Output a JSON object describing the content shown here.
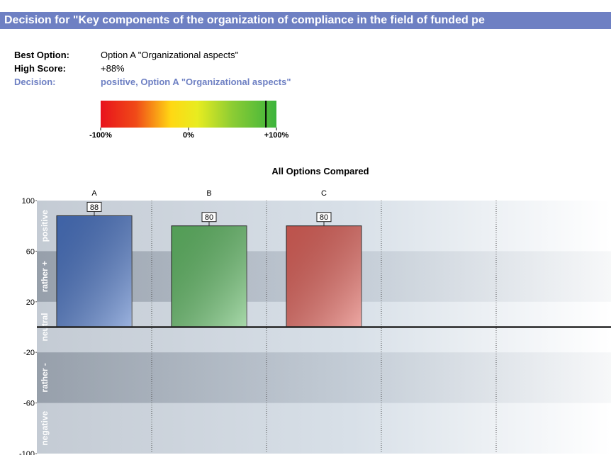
{
  "header": {
    "title": "Decision for  \"Key components of the organization of compliance in the field of funded pe"
  },
  "info": {
    "rows": [
      {
        "label": "Best Option:",
        "value": "Option A \"Organizational aspects\""
      },
      {
        "label": "High Score:",
        "value": "+88%"
      },
      {
        "label": "Decision:",
        "value": "positive, Option A \"Organizational aspects\""
      }
    ]
  },
  "scale": {
    "lim": [
      -100,
      100
    ],
    "marker": 88,
    "ticks": [
      {
        "value": -100,
        "label": "-100%"
      },
      {
        "value": 0,
        "label": "0%"
      },
      {
        "value": 100,
        "label": "+100%"
      }
    ]
  },
  "chart_data": {
    "type": "bar",
    "title": "All Options Compared",
    "categories": [
      "A",
      "B",
      "C",
      null,
      null
    ],
    "values": [
      88,
      80,
      80,
      null,
      null
    ],
    "colors": [
      "#4a74c4",
      "#62bb66",
      "#e0625a",
      null,
      null
    ],
    "ylim": [
      -100,
      100
    ],
    "yticks": [
      100,
      60,
      20,
      -20,
      -60,
      -100
    ],
    "bands": [
      {
        "label": "positive",
        "from": 60,
        "to": 100
      },
      {
        "label": "rather +",
        "from": 20,
        "to": 60
      },
      {
        "label": "neutral",
        "from": -20,
        "to": 20
      },
      {
        "label": "rather -",
        "from": -60,
        "to": -20
      },
      {
        "label": "negative",
        "from": -100,
        "to": -60
      }
    ]
  }
}
